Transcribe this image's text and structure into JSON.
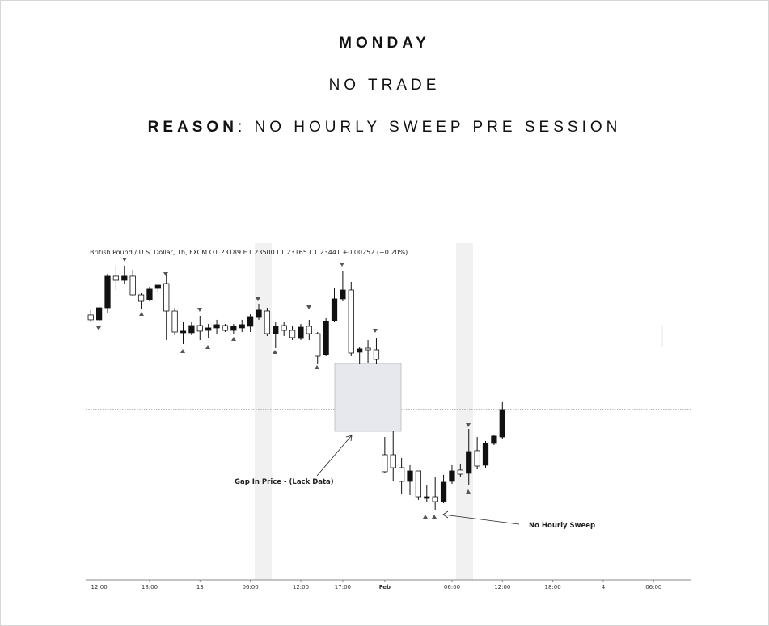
{
  "header": {
    "day": "MONDAY",
    "decision": "NO TRADE",
    "reason_label": "REASON",
    "reason_text": ": NO HOURLY SWEEP PRE SESSION"
  },
  "chart_data": {
    "type": "candlestick",
    "title": "British Pound / U.S. Dollar, 1h, FXCM  O1.23189  H1.23500  L1.23165  C1.23441  +0.00252 (+0.20%)",
    "annotations": [
      "Gap In Price - (Lack Data)",
      "No Hourly Sweep"
    ],
    "x": [
      0,
      1,
      2,
      3,
      4,
      5,
      6,
      7,
      8,
      9,
      10,
      11,
      12,
      13,
      14,
      15,
      16,
      17,
      18,
      19,
      20,
      21,
      22,
      23,
      24,
      25,
      26,
      27,
      28,
      29,
      30,
      31,
      32,
      33,
      34,
      35,
      36,
      37,
      38,
      39,
      40,
      41,
      42,
      43,
      44,
      45,
      46,
      47,
      48,
      49
    ],
    "open": [
      1.24333,
      1.24288,
      1.244,
      1.24693,
      1.24655,
      1.24693,
      1.2452,
      1.24475,
      1.2458,
      1.24625,
      1.2437,
      1.24168,
      1.24168,
      1.24235,
      1.2419,
      1.24213,
      1.24235,
      1.2419,
      1.24213,
      1.24228,
      1.2431,
      1.2437,
      1.2416,
      1.24235,
      1.2419,
      1.24115,
      1.24228,
      1.2416,
      1.23965,
      1.2428,
      1.24483,
      1.24565,
      1.23988,
      1.24025,
      1.2401,
      1.23035,
      1.23035,
      1.22915,
      1.22788,
      1.22885,
      1.2263,
      1.22645,
      1.226,
      1.22788,
      1.22893,
      1.22863,
      1.23073,
      1.22938,
      1.2314,
      1.232
    ],
    "high": [
      1.24378,
      1.24415,
      1.24715,
      1.2479,
      1.2479,
      1.24753,
      1.24535,
      1.24595,
      1.24625,
      1.247,
      1.244,
      1.24265,
      1.24265,
      1.24325,
      1.2425,
      1.24288,
      1.2425,
      1.2425,
      1.24288,
      1.2434,
      1.24438,
      1.244,
      1.24265,
      1.24265,
      1.24235,
      1.2425,
      1.24288,
      1.24175,
      1.24303,
      1.2458,
      1.24738,
      1.2464,
      1.2404,
      1.241,
      1.24115,
      1.232,
      1.2326,
      1.23005,
      1.22938,
      1.22885,
      1.2275,
      1.22825,
      1.22848,
      1.22938,
      1.22953,
      1.23275,
      1.232,
      1.23163,
      1.23223,
      1.23523
    ],
    "low": [
      1.24265,
      1.24265,
      1.24355,
      1.24565,
      1.24625,
      1.24505,
      1.24385,
      1.2446,
      1.2455,
      1.241,
      1.24145,
      1.24063,
      1.24145,
      1.241,
      1.24115,
      1.2416,
      1.24175,
      1.2416,
      1.24175,
      1.24175,
      1.24288,
      1.24138,
      1.24025,
      1.24138,
      1.241,
      1.241,
      1.241,
      1.23875,
      1.2395,
      1.24265,
      1.2446,
      1.2395,
      1.23875,
      1.2389,
      1.23875,
      1.22863,
      1.22788,
      1.22675,
      1.2266,
      1.22615,
      1.226,
      1.22525,
      1.22585,
      1.22765,
      1.22825,
      1.2275,
      1.229,
      1.22915,
      1.23125,
      1.23185
    ],
    "close": [
      1.24288,
      1.244,
      1.24693,
      1.24655,
      1.24693,
      1.2452,
      1.2446,
      1.24573,
      1.2461,
      1.2437,
      1.24175,
      1.24183,
      1.24235,
      1.24183,
      1.24213,
      1.24243,
      1.2419,
      1.24228,
      1.24243,
      1.24318,
      1.24378,
      1.2416,
      1.24228,
      1.2419,
      1.24123,
      1.2422,
      1.2416,
      1.2395,
      1.24273,
      1.24483,
      1.24565,
      1.2398,
      1.24018,
      1.2401,
      1.2392,
      1.22878,
      1.22915,
      1.22788,
      1.22885,
      1.22645,
      1.22645,
      1.226,
      1.2278,
      1.22885,
      1.22855,
      1.23065,
      1.2293,
      1.2314,
      1.23208,
      1.23455
    ],
    "up_color": "#111111",
    "down_color": "#ffffff",
    "xlim": [
      -0.6,
      71.4
    ],
    "ylim": [
      1.218725,
      1.25
    ],
    "xticks": [
      {
        "value": 1,
        "label": "12:00"
      },
      {
        "value": 7,
        "label": "18:00"
      },
      13,
      {
        "value": 19,
        "label": "06:00"
      },
      {
        "value": 25,
        "label": "12:00"
      },
      {
        "value": 30,
        "label": "17:00"
      },
      {
        "value": 35,
        "label": "Feb"
      },
      {
        "value": 43,
        "label": "06:00"
      },
      {
        "value": 49,
        "label": "12:00"
      },
      {
        "value": 55,
        "label": "18:00"
      },
      {
        "value": 61,
        "label": "4"
      },
      {
        "value": 67,
        "label": "06:00"
      }
    ]
  }
}
